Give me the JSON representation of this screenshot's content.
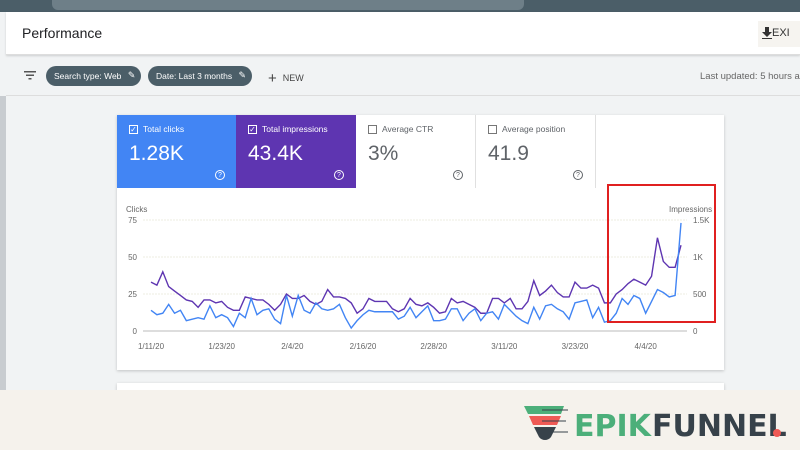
{
  "header": {
    "title": "Performance",
    "export_label": "EXI"
  },
  "filters": {
    "chips": [
      "Search type: Web",
      "Date: Last 3 months"
    ],
    "new_label": "NEW",
    "last_updated": "Last updated: 5 hours a"
  },
  "metrics": [
    {
      "label": "Total clicks",
      "value": "1.28K",
      "checked": true,
      "color": "#4285f4"
    },
    {
      "label": "Total impressions",
      "value": "43.4K",
      "checked": true,
      "color": "#5e35b1"
    },
    {
      "label": "Average CTR",
      "value": "3%",
      "checked": false
    },
    {
      "label": "Average position",
      "value": "41.9",
      "checked": false
    }
  ],
  "logo": {
    "text1": "EPIK",
    "text2": "FUNNEL"
  },
  "chart_data": {
    "type": "line",
    "y_left_label": "Clicks",
    "y_right_label": "Impressions",
    "y_left_ticks": [
      "75",
      "50",
      "25",
      "0"
    ],
    "y_right_ticks": [
      "1.5K",
      "1K",
      "500",
      "0"
    ],
    "ylim_left": [
      0,
      75
    ],
    "ylim_right": [
      0,
      1500
    ],
    "x_ticks": [
      "1/11/20",
      "1/23/20",
      "2/4/20",
      "2/16/20",
      "2/28/20",
      "3/11/20",
      "3/23/20",
      "4/4/20"
    ],
    "grid": true,
    "highlight_box": {
      "color": "#e02020",
      "from": "4/1/20",
      "to": "4/10/20"
    },
    "x": [
      "1/11",
      "1/12",
      "1/13",
      "1/14",
      "1/15",
      "1/16",
      "1/17",
      "1/18",
      "1/19",
      "1/20",
      "1/21",
      "1/22",
      "1/23",
      "1/24",
      "1/25",
      "1/26",
      "1/27",
      "1/28",
      "1/29",
      "1/30",
      "1/31",
      "2/1",
      "2/2",
      "2/3",
      "2/4",
      "2/5",
      "2/6",
      "2/7",
      "2/8",
      "2/9",
      "2/10",
      "2/11",
      "2/12",
      "2/13",
      "2/14",
      "2/15",
      "2/16",
      "2/17",
      "2/18",
      "2/19",
      "2/20",
      "2/21",
      "2/22",
      "2/23",
      "2/24",
      "2/25",
      "2/26",
      "2/27",
      "2/28",
      "2/29",
      "3/1",
      "3/2",
      "3/3",
      "3/4",
      "3/5",
      "3/6",
      "3/7",
      "3/8",
      "3/9",
      "3/10",
      "3/11",
      "3/12",
      "3/13",
      "3/14",
      "3/15",
      "3/16",
      "3/17",
      "3/18",
      "3/19",
      "3/20",
      "3/21",
      "3/22",
      "3/23",
      "3/24",
      "3/25",
      "3/26",
      "3/27",
      "3/28",
      "3/29",
      "3/30",
      "3/31",
      "4/1",
      "4/2",
      "4/3",
      "4/4",
      "4/5",
      "4/6",
      "4/7",
      "4/8",
      "4/9",
      "4/10"
    ],
    "series": [
      {
        "name": "Clicks",
        "axis": "left",
        "color": "#4285f4",
        "values": [
          14,
          11,
          12,
          18,
          12,
          14,
          7,
          8,
          9,
          8,
          17,
          9,
          11,
          9,
          3,
          12,
          9,
          22,
          11,
          14,
          15,
          8,
          5,
          24,
          10,
          24,
          14,
          12,
          19,
          15,
          14,
          15,
          18,
          9,
          2,
          7,
          11,
          14,
          13,
          13,
          13,
          13,
          8,
          10,
          16,
          9,
          13,
          17,
          7,
          7,
          8,
          15,
          15,
          7,
          12,
          15,
          7,
          12,
          13,
          8,
          18,
          14,
          10,
          7,
          5,
          16,
          8,
          17,
          18,
          15,
          13,
          8,
          19,
          20,
          21,
          9,
          16,
          6,
          7,
          12,
          22,
          18,
          24,
          22,
          12,
          20,
          28,
          26,
          23,
          24,
          73
        ]
      },
      {
        "name": "Impressions",
        "axis": "right",
        "color": "#5e35b1",
        "values": [
          660,
          620,
          800,
          600,
          540,
          480,
          420,
          400,
          320,
          420,
          420,
          380,
          400,
          320,
          280,
          280,
          460,
          440,
          420,
          420,
          360,
          280,
          360,
          500,
          440,
          440,
          480,
          400,
          360,
          400,
          560,
          460,
          460,
          440,
          380,
          240,
          300,
          440,
          400,
          400,
          400,
          300,
          260,
          300,
          440,
          360,
          340,
          380,
          320,
          240,
          260,
          440,
          380,
          400,
          360,
          320,
          240,
          240,
          440,
          440,
          380,
          440,
          300,
          300,
          400,
          680,
          480,
          540,
          620,
          520,
          460,
          460,
          660,
          580,
          580,
          620,
          580,
          380,
          380,
          500,
          560,
          640,
          700,
          660,
          620,
          740,
          1260,
          940,
          860,
          860,
          1160
        ]
      }
    ]
  }
}
